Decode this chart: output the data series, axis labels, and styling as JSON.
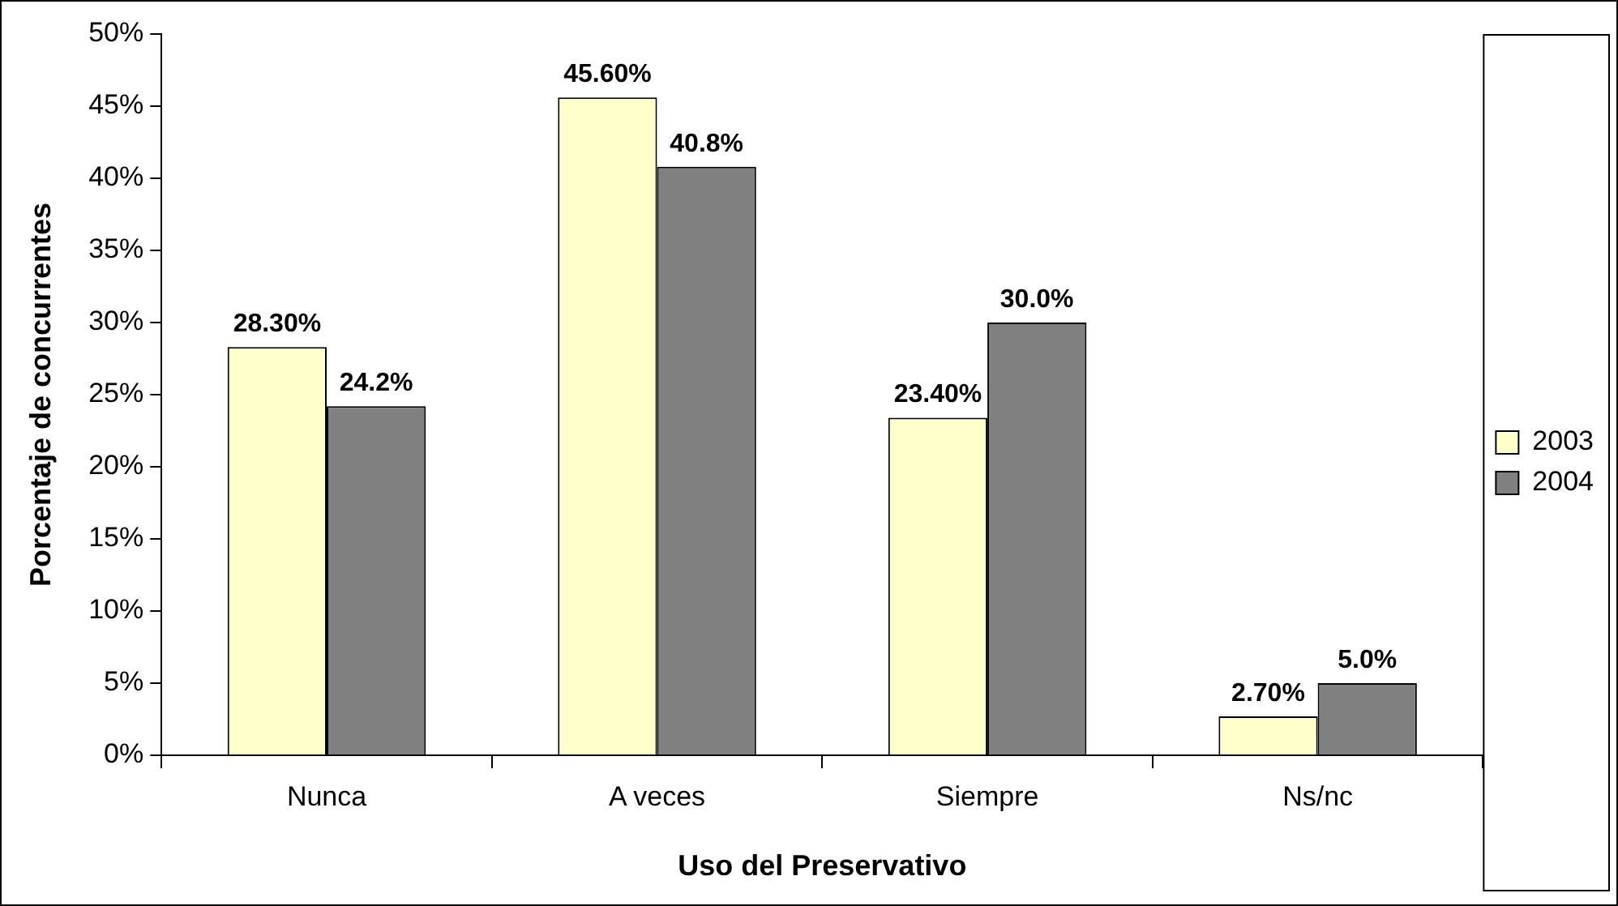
{
  "chart_data": {
    "type": "bar",
    "xlabel": "Uso del Preservativo",
    "ylabel": "Porcentaje de concurrentes",
    "categories": [
      "Nunca",
      "A veces",
      "Siempre",
      "Ns/nc"
    ],
    "series": [
      {
        "name": "2003",
        "color": "#ffffcc",
        "values": [
          28.3,
          45.6,
          23.4,
          2.7
        ],
        "value_labels": [
          "28.30%",
          "45.60%",
          "23.40%",
          "2.70%"
        ]
      },
      {
        "name": "2004",
        "color": "#808080",
        "values": [
          24.2,
          40.8,
          30.0,
          5.0
        ],
        "value_labels": [
          "24.2%",
          "40.8%",
          "30.0%",
          "5.0%"
        ]
      }
    ],
    "ylim": [
      0,
      50
    ],
    "yticks": [
      {
        "value": 0,
        "label": "0%"
      },
      {
        "value": 5,
        "label": "5%"
      },
      {
        "value": 10,
        "label": "10%"
      },
      {
        "value": 15,
        "label": "15%"
      },
      {
        "value": 20,
        "label": "20%"
      },
      {
        "value": 25,
        "label": "25%"
      },
      {
        "value": 30,
        "label": "30%"
      },
      {
        "value": 35,
        "label": "35%"
      },
      {
        "value": 40,
        "label": "40%"
      },
      {
        "value": 45,
        "label": "45%"
      },
      {
        "value": 50,
        "label": "50%"
      }
    ],
    "grid": false,
    "legend": "right"
  }
}
